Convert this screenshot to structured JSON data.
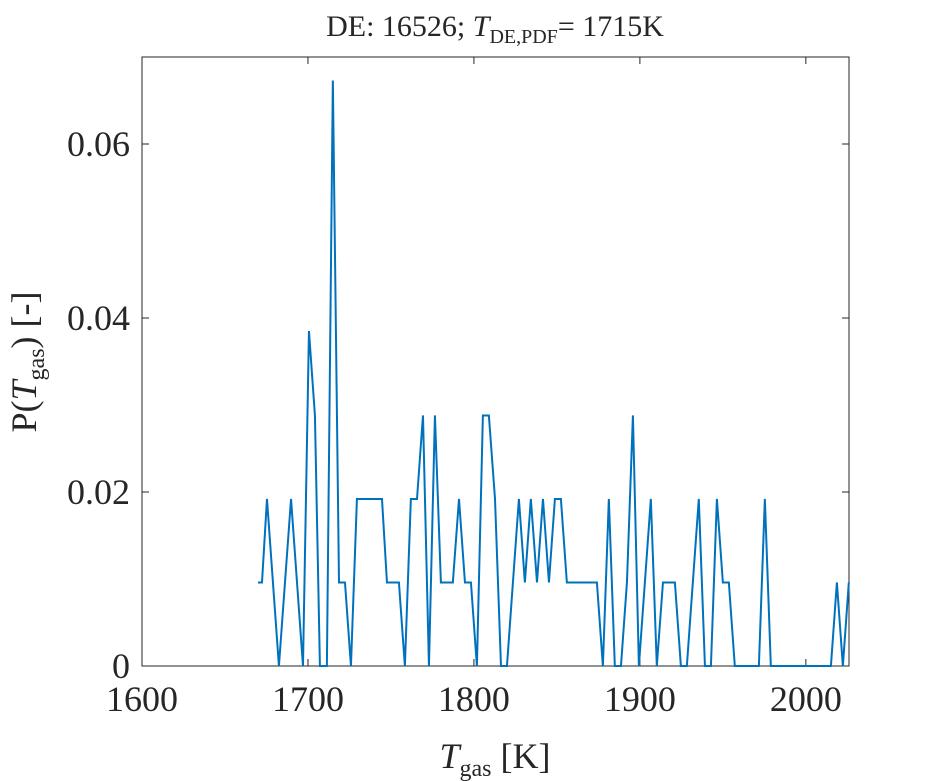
{
  "chart_data": {
    "type": "line",
    "title": {
      "prefix": "DE: 16526; ",
      "symbol": "T",
      "subscript": "DE,PDF",
      "suffix": "= 1715K"
    },
    "x_label": {
      "symbol": "T",
      "subscript": "gas",
      "suffix": " [K]"
    },
    "y_label": {
      "prefix": "P(",
      "symbol": "T",
      "subscript": "gas",
      "suffix": ") [-]"
    },
    "x": [
      1669.9,
      1672.3,
      1675.3,
      1682.5,
      1689.8,
      1697,
      1700.6,
      1704.2,
      1707.2,
      1711.4,
      1715,
      1718.7,
      1722.3,
      1725.9,
      1729.5,
      1744.6,
      1747.6,
      1754.8,
      1758.4,
      1762,
      1765.7,
      1769.3,
      1772.9,
      1776.5,
      1780.1,
      1787.3,
      1791,
      1794.6,
      1798.2,
      1801.8,
      1805.4,
      1809,
      1812.7,
      1816.3,
      1819.9,
      1823.5,
      1827.1,
      1830.7,
      1834.3,
      1838,
      1841.6,
      1845.2,
      1848.8,
      1852.4,
      1856,
      1874.1,
      1877.7,
      1881.3,
      1884.9,
      1888.6,
      1892.2,
      1895.8,
      1899.4,
      1903,
      1906.6,
      1910.2,
      1913.9,
      1921.1,
      1924.7,
      1928.3,
      1931.9,
      1935.5,
      1939.2,
      1942.8,
      1946.4,
      1950,
      1953.6,
      1957.2,
      1971.7,
      1975.3,
      1978.9,
      2015.1,
      2018.7,
      2022.3,
      2025.9
    ],
    "series": [
      {
        "color": "#0072bd",
        "values": [
          0.0096,
          0.0096,
          0.0192,
          0,
          0.0192,
          0,
          0.0385,
          0.0288,
          0,
          0,
          0.0673,
          0.0096,
          0.0096,
          0,
          0.0192,
          0.0192,
          0.0096,
          0.0096,
          0,
          0.0192,
          0.0192,
          0.0288,
          0,
          0.0288,
          0.0096,
          0.0096,
          0.0192,
          0.0096,
          0.0096,
          0,
          0.0288,
          0.0288,
          0.0192,
          0,
          0,
          0.0096,
          0.0192,
          0.0096,
          0.0192,
          0.0096,
          0.0192,
          0.0096,
          0.0192,
          0.0192,
          0.0096,
          0.0096,
          0,
          0.0192,
          0,
          0,
          0.0096,
          0.0288,
          0,
          0.0096,
          0.0192,
          0,
          0.0096,
          0.0096,
          0,
          0,
          0.0096,
          0.0192,
          0,
          0,
          0.0192,
          0.0096,
          0.0096,
          0,
          0,
          0.0192,
          0,
          0,
          0.0096,
          0,
          0.0096
        ]
      }
    ],
    "xlim": [
      1600,
      2026
    ],
    "xticks": [
      1600,
      1700,
      1800,
      1900,
      2000
    ],
    "ylim": [
      0,
      0.07
    ],
    "yticks": [
      0,
      0.02,
      0.04,
      0.06
    ]
  }
}
